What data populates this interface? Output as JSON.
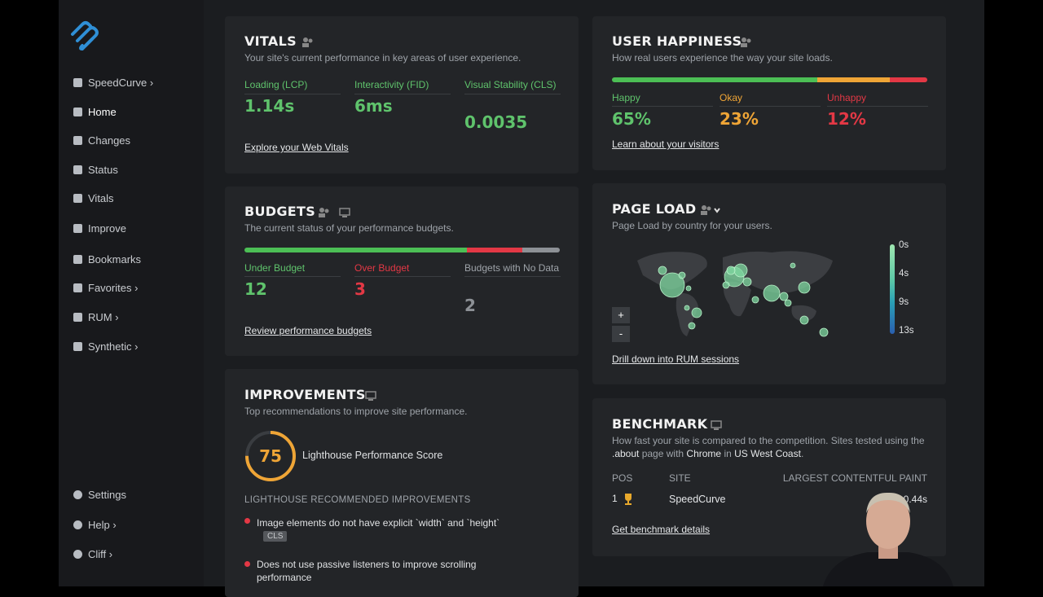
{
  "sidebar": {
    "nav": [
      "SpeedCurve ›",
      "Home",
      "Changes",
      "Status",
      "Vitals",
      "Improve",
      "Bookmarks",
      "Favorites ›",
      "RUM ›",
      "Synthetic ›"
    ],
    "bottom": [
      "Settings",
      "Help ›",
      "Cliff ›"
    ]
  },
  "vitals": {
    "title": "VITALS",
    "subtitle": "Your site's current performance in key areas of user experience.",
    "metrics": [
      {
        "label": "Loading (LCP)",
        "value": "1.14s"
      },
      {
        "label": "Interactivity (FID)",
        "value": "6ms"
      },
      {
        "label": "Visual Stability (CLS)",
        "value": "0.0035"
      }
    ],
    "link": "Explore your Web Vitals"
  },
  "happiness": {
    "title": "USER HAPPINESS",
    "subtitle": "How real users experience the way your site loads.",
    "groups": [
      {
        "label": "Happy",
        "value": "65%"
      },
      {
        "label": "Okay",
        "value": "23%"
      },
      {
        "label": "Unhappy",
        "value": "12%"
      }
    ],
    "link": "Learn about your visitors"
  },
  "budgets": {
    "title": "BUDGETS",
    "subtitle": "The current status of your performance budgets.",
    "groups": [
      {
        "label": "Under Budget",
        "value": 12
      },
      {
        "label": "Over Budget",
        "value": 3
      },
      {
        "label": "Budgets with No Data",
        "value": 2
      }
    ],
    "link": "Review performance budgets"
  },
  "page_load": {
    "title": "PAGE LOAD",
    "subtitle": "Page Load by country for your users.",
    "legend": [
      "0s",
      "4s",
      "9s",
      "13s"
    ],
    "zoom": [
      "+",
      "-"
    ],
    "link": "Drill down into RUM sessions"
  },
  "improvements": {
    "title": "IMPROVEMENTS",
    "subtitle": "Top recommendations to improve site performance.",
    "score": 75,
    "score_label": "Lighthouse Performance Score",
    "section": "LIGHTHOUSE RECOMMENDED IMPROVEMENTS",
    "items": [
      {
        "text": "Image elements do not have explicit `width` and `height`",
        "tag": "CLS"
      },
      {
        "text": "Does not use passive listeners to improve scrolling performance"
      }
    ]
  },
  "benchmark": {
    "title": "BENCHMARK",
    "subtitle": [
      "How fast your site is compared to the competition. Sites tested using the ",
      ".about",
      " page with ",
      "Chrome",
      " in ",
      "US West Coast",
      "."
    ],
    "columns": [
      "POS",
      "SITE",
      "LARGEST CONTENTFUL PAINT"
    ],
    "rows": [
      [
        "1",
        "SpeedCurve",
        "0.44s"
      ]
    ],
    "link": "Get benchmark details"
  }
}
